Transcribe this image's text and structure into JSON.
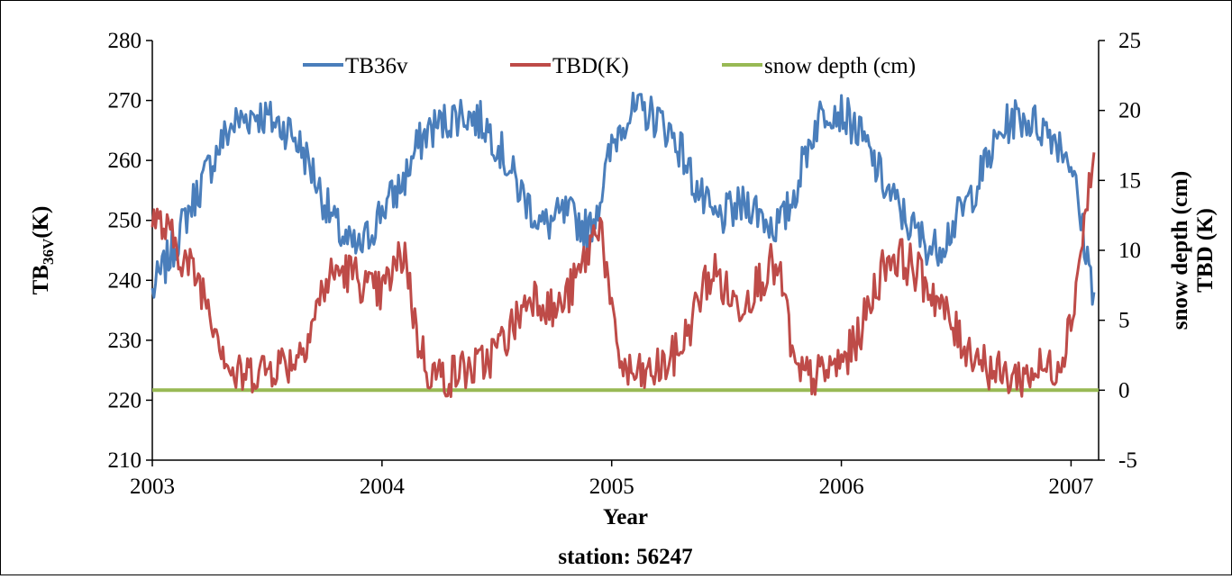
{
  "chart_data": {
    "type": "line",
    "title": "",
    "xlabel": "Year",
    "ylabel_left_prefix": "TB",
    "ylabel_left_subscript": "36V",
    "ylabel_left_suffix": "(K)",
    "ylabel_right_line1": "snow depth (cm)",
    "ylabel_right_line2": "TBD (K)",
    "caption": "station: 56247",
    "x_ticks": [
      "2003",
      "2004",
      "2005",
      "2006",
      "2007"
    ],
    "xlim": [
      2003.0,
      2007.12
    ],
    "y_left_ticks": [
      "210",
      "220",
      "230",
      "240",
      "250",
      "260",
      "270",
      "280"
    ],
    "ylim_left": [
      210,
      280
    ],
    "y_right_ticks": [
      "-5",
      "0",
      "5",
      "10",
      "15",
      "20",
      "25"
    ],
    "ylim_right": [
      -5,
      25
    ],
    "legend_position": "top-center",
    "grid": false,
    "colors": {
      "TB36v": "#4a7ebb",
      "TBD(K)": "#be4b48",
      "snow depth (cm)": "#98b954"
    },
    "series": [
      {
        "name": "TB36v",
        "axis": "left",
        "x": [
          2003.0,
          2003.05,
          2003.1,
          2003.15,
          2003.2,
          2003.25,
          2003.3,
          2003.35,
          2003.4,
          2003.45,
          2003.5,
          2003.55,
          2003.6,
          2003.65,
          2003.7,
          2003.75,
          2003.8,
          2003.85,
          2003.9,
          2003.95,
          2004.0,
          2004.05,
          2004.1,
          2004.15,
          2004.2,
          2004.25,
          2004.3,
          2004.35,
          2004.4,
          2004.45,
          2004.5,
          2004.55,
          2004.6,
          2004.65,
          2004.7,
          2004.75,
          2004.8,
          2004.85,
          2004.9,
          2004.95,
          2005.0,
          2005.05,
          2005.1,
          2005.15,
          2005.2,
          2005.25,
          2005.3,
          2005.35,
          2005.4,
          2005.45,
          2005.5,
          2005.55,
          2005.6,
          2005.65,
          2005.7,
          2005.75,
          2005.8,
          2005.85,
          2005.9,
          2005.95,
          2006.0,
          2006.05,
          2006.1,
          2006.15,
          2006.2,
          2006.25,
          2006.3,
          2006.35,
          2006.4,
          2006.45,
          2006.5,
          2006.55,
          2006.6,
          2006.65,
          2006.7,
          2006.75,
          2006.8,
          2006.85,
          2006.9,
          2006.95,
          2007.0,
          2007.05,
          2007.1
        ],
        "values": [
          238,
          242,
          246,
          251,
          255,
          259,
          263,
          266,
          267,
          268,
          267,
          266,
          265,
          262,
          258,
          253,
          249,
          246,
          245,
          248,
          252,
          254,
          257,
          262,
          265,
          266,
          267,
          268,
          267,
          266,
          263,
          259,
          255,
          252,
          249,
          250,
          251,
          250,
          248,
          254,
          262,
          267,
          268,
          268,
          267,
          265,
          262,
          257,
          253,
          250,
          251,
          252,
          253,
          251,
          249,
          250,
          255,
          262,
          267,
          269,
          268,
          266,
          263,
          259,
          255,
          252,
          249,
          247,
          245,
          247,
          250,
          253,
          257,
          261,
          265,
          267,
          267,
          266,
          265,
          263,
          260,
          248,
          238
        ]
      },
      {
        "name": "TBD(K)",
        "axis": "right",
        "x": [
          2003.0,
          2003.05,
          2003.1,
          2003.15,
          2003.2,
          2003.25,
          2003.3,
          2003.35,
          2003.4,
          2003.45,
          2003.5,
          2003.55,
          2003.6,
          2003.65,
          2003.7,
          2003.75,
          2003.8,
          2003.85,
          2003.9,
          2003.95,
          2004.0,
          2004.05,
          2004.1,
          2004.15,
          2004.2,
          2004.25,
          2004.3,
          2004.35,
          2004.4,
          2004.45,
          2004.5,
          2004.55,
          2004.6,
          2004.65,
          2004.7,
          2004.75,
          2004.8,
          2004.85,
          2004.9,
          2004.95,
          2005.0,
          2005.05,
          2005.1,
          2005.15,
          2005.2,
          2005.25,
          2005.3,
          2005.35,
          2005.4,
          2005.45,
          2005.5,
          2005.55,
          2005.6,
          2005.65,
          2005.7,
          2005.75,
          2005.8,
          2005.85,
          2005.9,
          2005.95,
          2006.0,
          2006.05,
          2006.1,
          2006.15,
          2006.2,
          2006.25,
          2006.3,
          2006.35,
          2006.4,
          2006.45,
          2006.5,
          2006.55,
          2006.6,
          2006.65,
          2006.7,
          2006.75,
          2006.8,
          2006.85,
          2006.9,
          2006.95,
          2007.0,
          2007.05,
          2007.1
        ],
        "values": [
          12.5,
          11.5,
          10.5,
          9.0,
          8.0,
          6.0,
          3.5,
          1.0,
          1.0,
          1.5,
          1.5,
          2.0,
          2.0,
          3.0,
          5.0,
          7.5,
          8.5,
          8.5,
          8.0,
          7.0,
          7.0,
          8.5,
          10.0,
          4.0,
          1.5,
          1.0,
          1.0,
          1.5,
          1.5,
          2.0,
          3.0,
          4.0,
          5.5,
          7.0,
          6.5,
          5.5,
          6.5,
          8.0,
          10.0,
          12.5,
          5.0,
          1.5,
          1.0,
          1.0,
          1.5,
          2.0,
          3.0,
          5.0,
          7.5,
          8.5,
          7.0,
          6.0,
          7.0,
          8.0,
          9.0,
          7.0,
          1.0,
          1.0,
          1.0,
          1.5,
          2.0,
          3.0,
          5.0,
          7.5,
          9.5,
          9.5,
          9.0,
          8.0,
          7.0,
          5.5,
          4.0,
          3.0,
          2.5,
          1.5,
          1.0,
          1.0,
          1.0,
          1.5,
          1.5,
          2.0,
          5.0,
          11.0,
          17.0
        ]
      },
      {
        "name": "snow depth (cm)",
        "axis": "right",
        "x": [
          2003.0,
          2007.12
        ],
        "values": [
          0,
          0
        ]
      }
    ]
  }
}
